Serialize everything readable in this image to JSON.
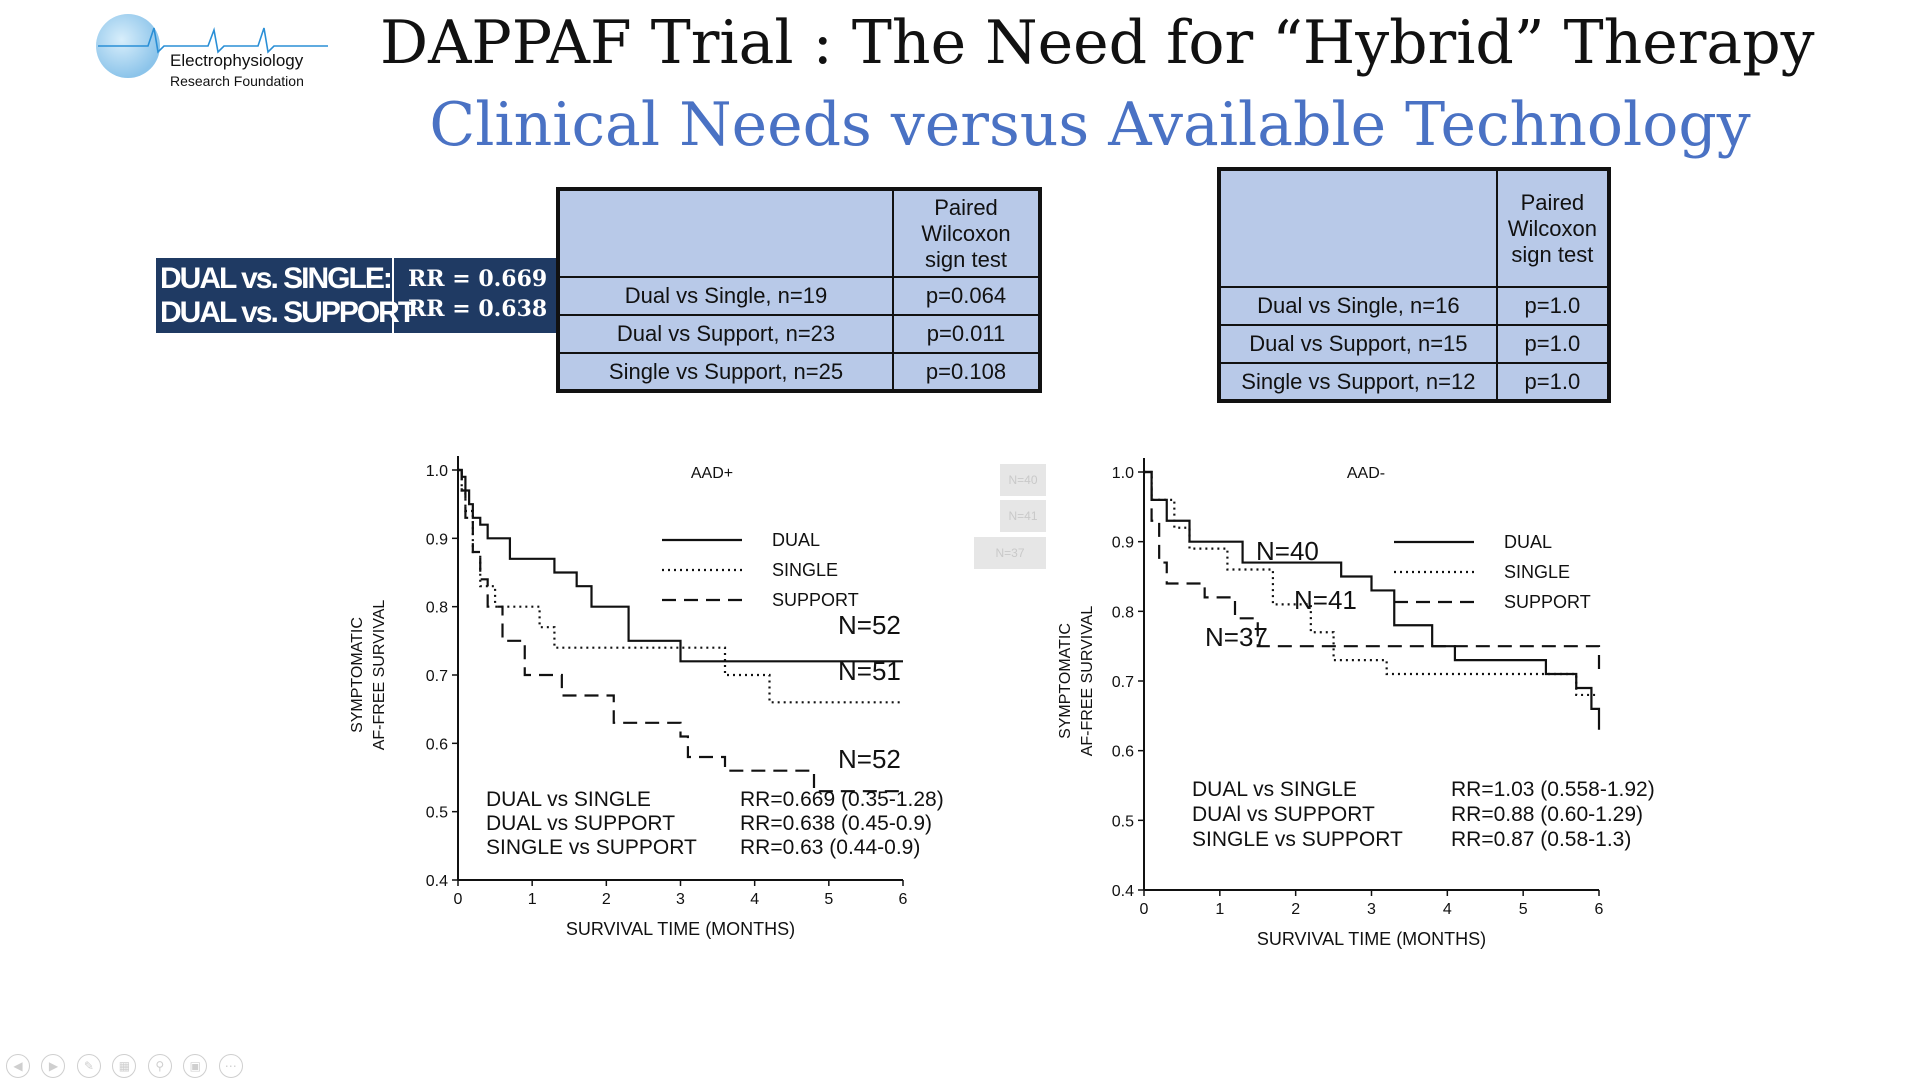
{
  "slide": {
    "title": "DAPPAF Trial : The Need for “Hybrid” Therapy",
    "subtitle": "Clinical Needs versus Available Technology"
  },
  "logo": {
    "line1": "Electrophysiology",
    "line2": "Research Foundation",
    "colors": {
      "globe": "#8cc4ea",
      "wave": "#2a8fd6"
    }
  },
  "rr_banner": {
    "row1_label": "DUAL vs. SINGLE:",
    "row1_value": "RR = 0.669",
    "row2_label": "DUAL vs. SUPPORT",
    "row2_value": "RR = 0.638",
    "color": "#1f3a63"
  },
  "table_left": {
    "header": "Paired Wilcoxon sign test",
    "rows": [
      {
        "comparison": "Dual vs Single, n=19",
        "p": "p=0.064"
      },
      {
        "comparison": "Dual vs Support, n=23",
        "p": "p=0.011"
      },
      {
        "comparison": "Single vs Support, n=25",
        "p": "p=0.108"
      }
    ]
  },
  "table_right": {
    "header": "Paired Wilcoxon sign test",
    "rows": [
      {
        "comparison": "Dual vs Single, n=16",
        "p": "p=1.0"
      },
      {
        "comparison": "Dual vs Support, n=15",
        "p": "p=1.0"
      },
      {
        "comparison": "Single vs Support, n=12",
        "p": "p=1.0"
      }
    ]
  },
  "table_fill_color": "#b8c9e8",
  "faded_labels": [
    "N=40",
    "N=41",
    "N=37"
  ],
  "chart_data": [
    {
      "type": "line",
      "step": true,
      "title": "AAD+",
      "xlabel": "SURVIVAL TIME (MONTHS)",
      "ylabel_line1": "SYMPTOMATIC",
      "ylabel_line2": "AF-FREE SURVIVAL",
      "xlim": [
        0,
        6
      ],
      "ylim": [
        0.4,
        1.0
      ],
      "xticks": [
        "0",
        "1",
        "2",
        "3",
        "4",
        "5",
        "6"
      ],
      "yticks": [
        "0.4",
        "0.5",
        "0.6",
        "0.7",
        "0.8",
        "0.9",
        "1.0"
      ],
      "legend": {
        "position": "upper-right",
        "entries": [
          "DUAL",
          "SINGLE",
          "SUPPORT"
        ]
      },
      "series": [
        {
          "name": "DUAL",
          "style": "solid",
          "x": [
            0,
            0.05,
            0.1,
            0.15,
            0.2,
            0.3,
            0.4,
            0.7,
            1.3,
            1.6,
            1.8,
            2.3,
            3.0,
            6.0
          ],
          "y": [
            1.0,
            0.99,
            0.97,
            0.95,
            0.93,
            0.92,
            0.9,
            0.87,
            0.85,
            0.83,
            0.8,
            0.75,
            0.72,
            0.72
          ],
          "n_label": "N=52"
        },
        {
          "name": "SINGLE",
          "style": "dotted",
          "x": [
            0,
            0.05,
            0.1,
            0.2,
            0.3,
            0.5,
            1.1,
            1.3,
            2.7,
            3.6,
            4.2,
            6.0
          ],
          "y": [
            1.0,
            0.97,
            0.94,
            0.88,
            0.83,
            0.8,
            0.77,
            0.74,
            0.74,
            0.7,
            0.66,
            0.66
          ],
          "n_label": "N=51"
        },
        {
          "name": "SUPPORT",
          "style": "dashed",
          "x": [
            0,
            0.05,
            0.1,
            0.2,
            0.3,
            0.4,
            0.6,
            0.9,
            1.4,
            2.1,
            3.0,
            3.1,
            3.6,
            4.8,
            6.0
          ],
          "y": [
            1.0,
            0.97,
            0.93,
            0.88,
            0.84,
            0.8,
            0.75,
            0.7,
            0.67,
            0.63,
            0.61,
            0.58,
            0.56,
            0.53,
            0.53
          ],
          "n_label": "N=52"
        }
      ],
      "annotations": [
        {
          "label": "DUAL vs SINGLE",
          "value": "RR=0.669 (0.35-1.28)"
        },
        {
          "label": "DUAL vs SUPPORT",
          "value": "RR=0.638 (0.45-0.9)"
        },
        {
          "label": "SINGLE vs SUPPORT",
          "value": "RR=0.63 (0.44-0.9)"
        }
      ]
    },
    {
      "type": "line",
      "step": true,
      "title": "AAD-",
      "xlabel": "SURVIVAL TIME (MONTHS)",
      "ylabel_line1": "SYMPTOMATIC",
      "ylabel_line2": "AF-FREE SURVIVAL",
      "xlim": [
        0,
        6
      ],
      "ylim": [
        0.4,
        1.0
      ],
      "xticks": [
        "0",
        "1",
        "2",
        "3",
        "4",
        "5",
        "6"
      ],
      "yticks": [
        "0.4",
        "0.5",
        "0.6",
        "0.7",
        "0.8",
        "0.9",
        "1.0"
      ],
      "legend": {
        "position": "upper-right",
        "entries": [
          "DUAL",
          "SINGLE",
          "SUPPORT"
        ]
      },
      "series": [
        {
          "name": "DUAL",
          "style": "solid",
          "x": [
            0,
            0.1,
            0.3,
            0.6,
            1.3,
            2.6,
            3.0,
            3.3,
            3.8,
            4.1,
            5.3,
            5.7,
            5.9,
            6.0
          ],
          "y": [
            1.0,
            0.96,
            0.93,
            0.9,
            0.87,
            0.85,
            0.83,
            0.78,
            0.75,
            0.73,
            0.71,
            0.69,
            0.66,
            0.63
          ],
          "n_label": "N=40"
        },
        {
          "name": "SINGLE",
          "style": "dotted",
          "x": [
            0,
            0.1,
            0.4,
            0.6,
            1.1,
            1.7,
            2.2,
            2.5,
            3.2,
            4.3,
            5.2,
            5.7,
            6.0
          ],
          "y": [
            1.0,
            0.96,
            0.92,
            0.89,
            0.86,
            0.81,
            0.77,
            0.73,
            0.71,
            0.71,
            0.71,
            0.68,
            0.68
          ],
          "n_label": "N=41"
        },
        {
          "name": "SUPPORT",
          "style": "dashed",
          "x": [
            0,
            0.1,
            0.2,
            0.3,
            0.8,
            1.2,
            1.5,
            6.0
          ],
          "y": [
            1.0,
            0.93,
            0.87,
            0.84,
            0.82,
            0.79,
            0.75,
            0.71
          ],
          "n_label": "N=37"
        }
      ],
      "annotations": [
        {
          "label": "DUAL vs SINGLE",
          "value": "RR=1.03 (0.558-1.92)"
        },
        {
          "label": "DUAl vs SUPPORT",
          "value": "RR=0.88 (0.60-1.29)"
        },
        {
          "label": "SINGLE vs SUPPORT",
          "value": "RR=0.87 (0.58-1.3)"
        }
      ]
    }
  ]
}
